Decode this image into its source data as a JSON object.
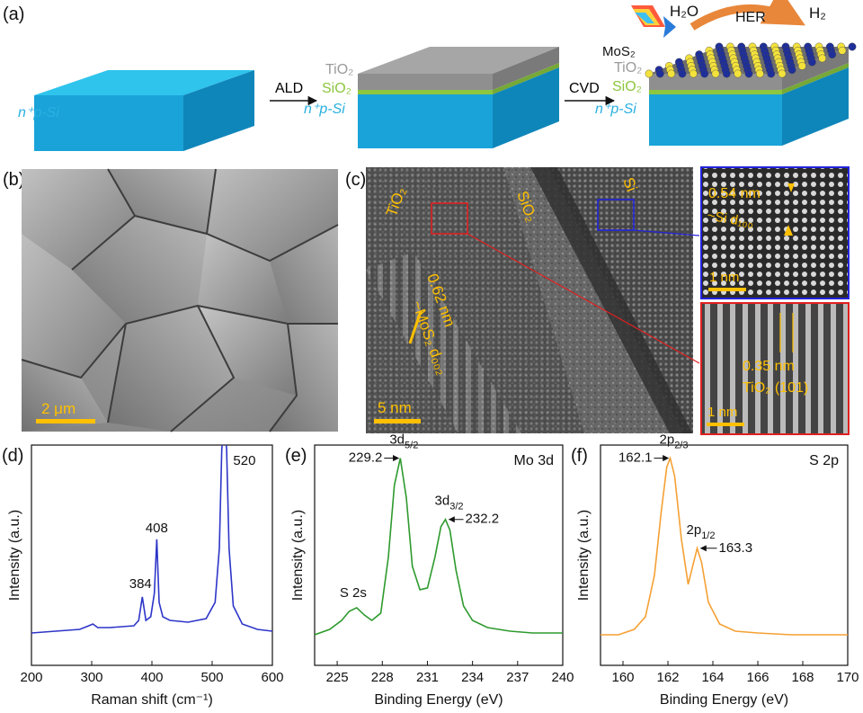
{
  "panel_labels": [
    "(a)",
    "(b)",
    "(c)",
    "(d)",
    "(e)",
    "(f)"
  ],
  "panel_a": {
    "substrate_label": "n⁺p-Si",
    "step1": "ALD",
    "step2": "CVD",
    "layer_tio2": "TiO₂",
    "layer_sio2": "SiO₂",
    "layer_mos2": "MoS₂",
    "h2o": "H₂O",
    "her": "HER",
    "h2": "H₂"
  },
  "panel_b": {
    "scale_bar": "2 μm"
  },
  "panel_c": {
    "tio2": "TiO₂",
    "sio2": "SiO₂",
    "si": "Si",
    "spacing1": "0.62 nm",
    "spacing1_label": "~MoS₂ d₀₀₂",
    "scale_bar": "5 nm",
    "inset_top_spacing": "0.54 nm",
    "inset_top_label": "~Si d₁₀₀",
    "inset_top_scale": "1 nm",
    "inset_bottom_spacing": "0.35 nm",
    "inset_bottom_label": "TiO₂ (101)",
    "inset_bottom_scale": "1 nm"
  },
  "chart_data": [
    {
      "id": "d",
      "type": "line",
      "xlabel": "Raman shift (cm⁻¹)",
      "ylabel": "Intensity (a.u.)",
      "xlim": [
        200,
        600
      ],
      "xticks": [
        "200",
        "300",
        "400",
        "500",
        "600"
      ],
      "color": "#2d35c8",
      "x": [
        200,
        220,
        240,
        260,
        280,
        295,
        302,
        310,
        330,
        350,
        370,
        378,
        384,
        390,
        398,
        404,
        408,
        412,
        418,
        430,
        460,
        490,
        505,
        512,
        516,
        520,
        524,
        528,
        535,
        550,
        575,
        600
      ],
      "y": [
        0.03,
        0.035,
        0.04,
        0.045,
        0.05,
        0.07,
        0.08,
        0.06,
        0.06,
        0.065,
        0.07,
        0.1,
        0.23,
        0.1,
        0.12,
        0.25,
        0.55,
        0.2,
        0.12,
        0.1,
        0.09,
        0.11,
        0.2,
        0.5,
        1.05,
        1.2,
        1.05,
        0.5,
        0.18,
        0.08,
        0.05,
        0.04
      ],
      "annotations": [
        {
          "text": "384",
          "x": 384,
          "y": 0.23
        },
        {
          "text": "408",
          "x": 408,
          "y": 0.55
        },
        {
          "text": "520",
          "x": 520,
          "y": 1.0
        }
      ]
    },
    {
      "id": "e",
      "type": "line",
      "title": "Mo 3d",
      "xlabel": "Binding Energy (eV)",
      "ylabel": "Intensity (a.u.)",
      "xlim": [
        223.5,
        240
      ],
      "xticks": [
        "225",
        "228",
        "231",
        "234",
        "237",
        "240"
      ],
      "color": "#2e9a2e",
      "x": [
        223.5,
        224.5,
        225.3,
        225.8,
        226.3,
        226.8,
        227.3,
        227.9,
        228.4,
        228.8,
        229.2,
        229.6,
        230.0,
        230.5,
        231.0,
        231.5,
        231.9,
        232.2,
        232.5,
        232.9,
        233.4,
        234.0,
        235.0,
        236.5,
        238.0,
        240.0
      ],
      "y": [
        0.02,
        0.05,
        0.1,
        0.15,
        0.17,
        0.13,
        0.1,
        0.14,
        0.45,
        0.85,
        1.0,
        0.78,
        0.4,
        0.27,
        0.28,
        0.45,
        0.62,
        0.66,
        0.6,
        0.38,
        0.18,
        0.1,
        0.06,
        0.04,
        0.03,
        0.03
      ],
      "annotations": [
        {
          "text": "S 2s",
          "x": 226.3,
          "y": 0.17
        },
        {
          "text": "229.2",
          "x": 229.2,
          "y": 1.0
        },
        {
          "text": "232.2",
          "x": 232.2,
          "y": 0.66
        }
      ],
      "peak_labels": [
        "3d",
        "5/2",
        "3d",
        "3/2"
      ]
    },
    {
      "id": "f",
      "type": "line",
      "title": "S 2p",
      "xlabel": "Binding Energy (eV)",
      "ylabel": "Intensity (a.u.)",
      "xlim": [
        159,
        170
      ],
      "xticks": [
        "160",
        "162",
        "164",
        "166",
        "168",
        "170"
      ],
      "color": "#f5a033",
      "x": [
        159.0,
        159.8,
        160.5,
        161.0,
        161.4,
        161.7,
        161.95,
        162.1,
        162.3,
        162.6,
        162.9,
        163.1,
        163.3,
        163.5,
        163.8,
        164.3,
        165.0,
        166.0,
        167.5,
        170.0
      ],
      "y": [
        0.02,
        0.02,
        0.05,
        0.12,
        0.35,
        0.7,
        0.95,
        1.0,
        0.9,
        0.55,
        0.3,
        0.4,
        0.5,
        0.42,
        0.2,
        0.08,
        0.04,
        0.03,
        0.02,
        0.02
      ],
      "annotations": [
        {
          "text": "162.1",
          "x": 162.1,
          "y": 1.0
        },
        {
          "text": "163.3",
          "x": 163.3,
          "y": 0.5
        }
      ],
      "peak_labels": [
        "2p",
        "2/3",
        "2p",
        "1/2"
      ]
    }
  ]
}
